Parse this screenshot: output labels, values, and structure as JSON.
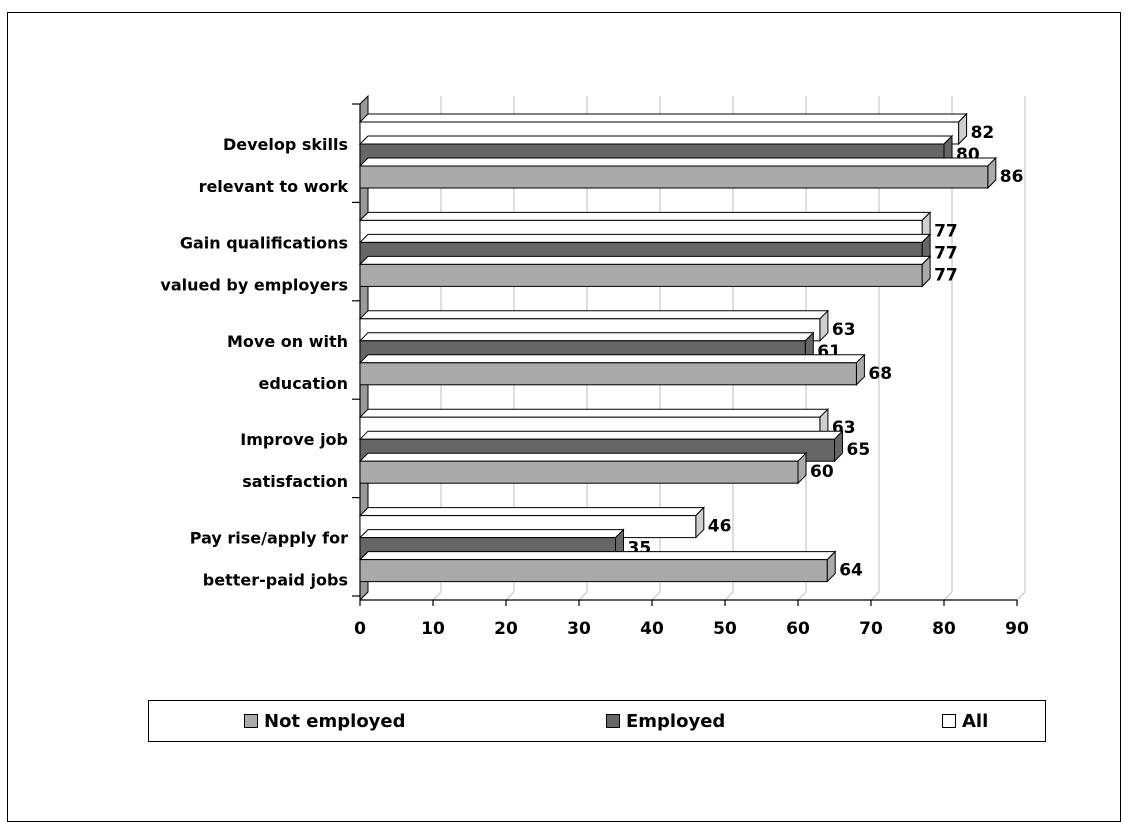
{
  "chart_data": {
    "type": "bar",
    "orientation": "horizontal",
    "title": "",
    "xlabel": "",
    "ylabel": "",
    "xlim": [
      0,
      90
    ],
    "ticks": [
      "0",
      "10",
      "20",
      "30",
      "40",
      "50",
      "60",
      "70",
      "80",
      "90"
    ],
    "grid": true,
    "legend_position": "bottom",
    "categories": [
      [
        "Develop skills",
        "relevant to work"
      ],
      [
        "Gain qualifications",
        "valued by employers"
      ],
      [
        "Move on with",
        "education"
      ],
      [
        "Improve job",
        "satisfaction"
      ],
      [
        "Pay rise/apply for",
        "better-paid jobs"
      ]
    ],
    "series": [
      {
        "name": "All",
        "color": "#ffffff",
        "values": [
          82,
          77,
          63,
          63,
          46
        ]
      },
      {
        "name": "Employed",
        "color": "#666666",
        "values": [
          80,
          77,
          61,
          65,
          35
        ]
      },
      {
        "name": "Not employed",
        "color": "#aaaaaa",
        "values": [
          86,
          77,
          68,
          60,
          64
        ]
      }
    ]
  },
  "legend": {
    "items": [
      {
        "label": "Not employed",
        "color": "#aaaaaa"
      },
      {
        "label": "Employed",
        "color": "#666666"
      },
      {
        "label": "All",
        "color": "#ffffff"
      }
    ]
  }
}
